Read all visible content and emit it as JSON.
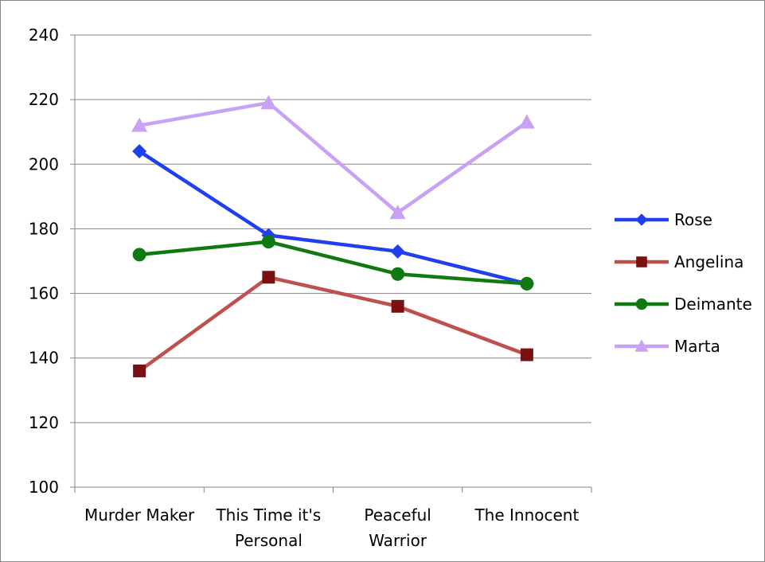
{
  "chart_data": {
    "type": "line",
    "categories": [
      [
        "Murder Maker"
      ],
      [
        "This Time it's",
        "Personal"
      ],
      [
        "Peaceful",
        "Warrior"
      ],
      [
        "The Innocent"
      ]
    ],
    "ylim": [
      100,
      240
    ],
    "yticks": [
      "100",
      "120",
      "140",
      "160",
      "180",
      "200",
      "220",
      "240"
    ],
    "grid": true,
    "legend_position": "right",
    "series": [
      {
        "name": "Rose",
        "values": [
          204,
          178,
          173,
          163
        ],
        "color": "#1f3ff0",
        "marker": "diamond"
      },
      {
        "name": "Angelina",
        "values": [
          136,
          165,
          156,
          141
        ],
        "color": "#c0504d",
        "marker_color": "#7b1010",
        "marker": "square"
      },
      {
        "name": "Deimante",
        "values": [
          172,
          176,
          166,
          163
        ],
        "color": "#0f7a0f",
        "marker": "circle"
      },
      {
        "name": "Marta",
        "values": [
          212,
          219,
          185,
          213
        ],
        "color": "#c8a2f5",
        "marker": "triangle"
      }
    ]
  }
}
